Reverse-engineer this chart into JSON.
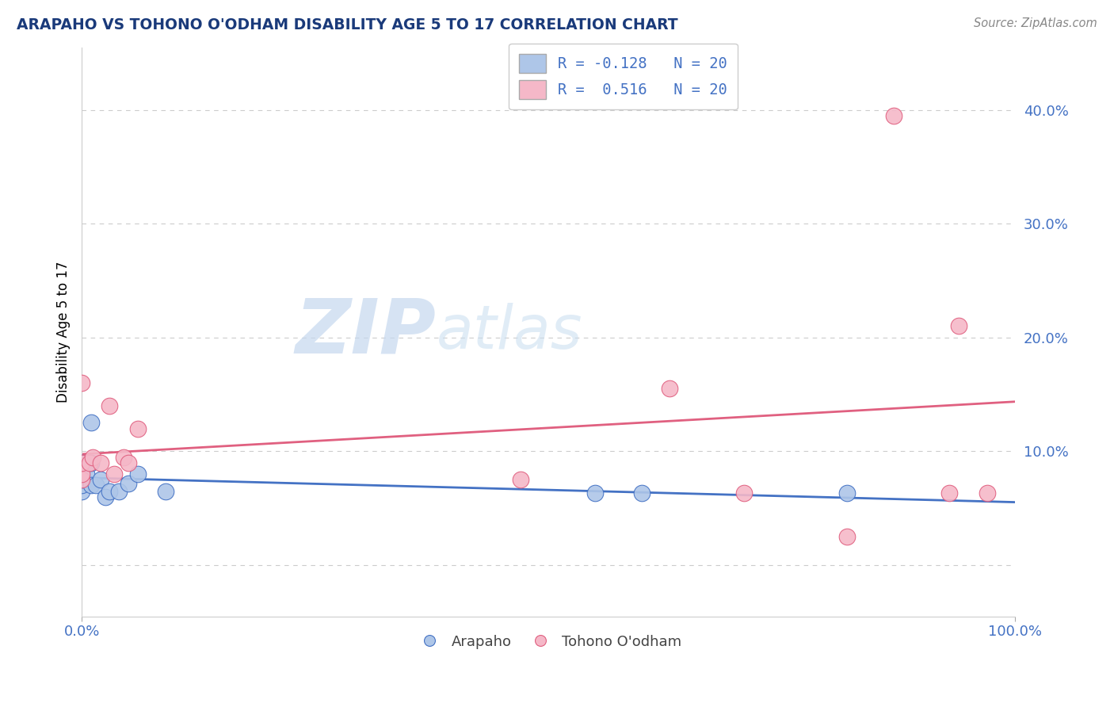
{
  "title": "ARAPAHO VS TOHONO O'ODHAM DISABILITY AGE 5 TO 17 CORRELATION CHART",
  "source": "Source: ZipAtlas.com",
  "ylabel": "Disability Age 5 to 17",
  "xlim": [
    0.0,
    1.0
  ],
  "ylim": [
    -0.045,
    0.455
  ],
  "ytick_vals": [
    0.0,
    0.1,
    0.2,
    0.3,
    0.4
  ],
  "ytick_labels": [
    "",
    "10.0%",
    "20.0%",
    "30.0%",
    "40.0%"
  ],
  "arapaho_color": "#aec6e8",
  "tohono_color": "#f5b8c8",
  "arapaho_line_color": "#4472c4",
  "tohono_line_color": "#e06080",
  "watermark_zip": "ZIP",
  "watermark_atlas": "atlas",
  "background_color": "#ffffff",
  "arapaho_x": [
    0.0,
    0.0,
    0.0,
    0.0,
    0.0,
    0.005,
    0.01,
    0.01,
    0.01,
    0.015,
    0.02,
    0.025,
    0.03,
    0.04,
    0.05,
    0.06,
    0.09,
    0.55,
    0.6,
    0.82
  ],
  "arapaho_y": [
    0.065,
    0.07,
    0.08,
    0.075,
    0.09,
    0.08,
    0.09,
    0.125,
    0.07,
    0.07,
    0.075,
    0.06,
    0.065,
    0.065,
    0.072,
    0.08,
    0.065,
    0.063,
    0.063,
    0.063
  ],
  "tohono_x": [
    0.0,
    0.0,
    0.0,
    0.0,
    0.008,
    0.012,
    0.02,
    0.03,
    0.035,
    0.045,
    0.05,
    0.06,
    0.47,
    0.63,
    0.71,
    0.82,
    0.87,
    0.93,
    0.94,
    0.97
  ],
  "tohono_y": [
    0.075,
    0.08,
    0.09,
    0.16,
    0.09,
    0.095,
    0.09,
    0.14,
    0.08,
    0.095,
    0.09,
    0.12,
    0.075,
    0.155,
    0.063,
    0.025,
    0.395,
    0.063,
    0.21,
    0.063
  ],
  "legend_line1": "R = -0.128   N = 20",
  "legend_line2": "R =  0.516   N = 20",
  "bottom_legend_labels": [
    "Arapaho",
    "Tohono O'odham"
  ]
}
